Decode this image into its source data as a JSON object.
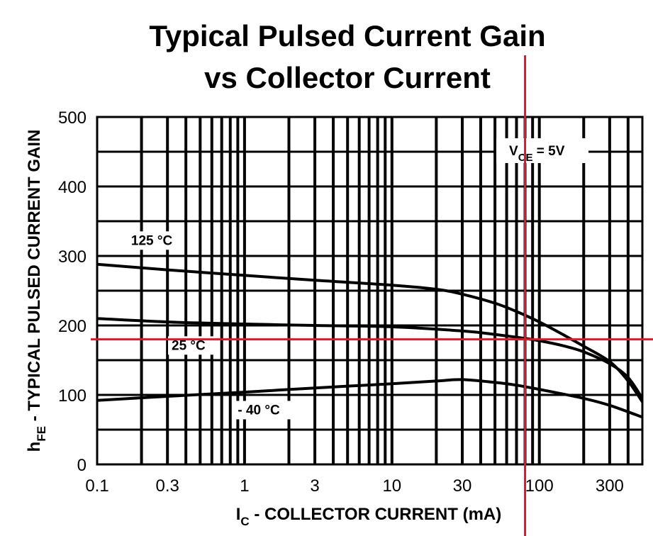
{
  "chart_data": {
    "type": "line",
    "title": [
      "Typical Pulsed Current Gain",
      "vs Collector Current"
    ],
    "xlabel": {
      "main": "I",
      "sub": "C",
      "rest": " - COLLECTOR CURRENT  (mA)"
    },
    "ylabel": {
      "main": "h",
      "sub": "FE",
      "rest": " - TYPICAL PULSED CURRENT GAIN"
    },
    "xscale": "log",
    "xlim": [
      0.1,
      500
    ],
    "ylim": [
      0,
      500
    ],
    "grid": true,
    "x_ticks": [
      {
        "value": 0.1,
        "label": "0.1"
      },
      {
        "value": 0.3,
        "label": "0.3"
      },
      {
        "value": 1,
        "label": "1"
      },
      {
        "value": 3,
        "label": "3"
      },
      {
        "value": 10,
        "label": "10"
      },
      {
        "value": 30,
        "label": "30"
      },
      {
        "value": 100,
        "label": "100"
      },
      {
        "value": 300,
        "label": "300"
      }
    ],
    "y_ticks": [
      {
        "value": 0,
        "label": "0"
      },
      {
        "value": 100,
        "label": "100"
      },
      {
        "value": 200,
        "label": "200"
      },
      {
        "value": 300,
        "label": "300"
      },
      {
        "value": 400,
        "label": "400"
      },
      {
        "value": 500,
        "label": "500"
      }
    ],
    "series": [
      {
        "name": "125 °C",
        "x": [
          0.1,
          0.3,
          1,
          3,
          10,
          20,
          30,
          50,
          70,
          100,
          150,
          200,
          300,
          400,
          500
        ],
        "y": [
          288,
          280,
          272,
          265,
          258,
          252,
          245,
          232,
          220,
          205,
          185,
          170,
          148,
          120,
          90
        ]
      },
      {
        "name": "25 °C",
        "x": [
          0.1,
          0.3,
          1,
          3,
          10,
          30,
          50,
          70,
          100,
          150,
          200,
          300,
          400,
          500
        ],
        "y": [
          210,
          205,
          202,
          200,
          198,
          192,
          187,
          183,
          178,
          170,
          162,
          145,
          125,
          95
        ]
      },
      {
        "name": "- 40 °C",
        "x": [
          0.1,
          0.3,
          1,
          3,
          10,
          20,
          30,
          50,
          70,
          100,
          200,
          300,
          500
        ],
        "y": [
          92,
          98,
          104,
          110,
          116,
          120,
          122,
          118,
          114,
          108,
          95,
          85,
          68
        ]
      }
    ],
    "annotations": [
      {
        "text": "125 °C",
        "x": 0.17,
        "y": 316
      },
      {
        "text": "25 °C",
        "x": 0.32,
        "y": 165
      },
      {
        "text": "- 40 °C",
        "x": 0.9,
        "y": 72
      }
    ],
    "vce_label": {
      "main": "V",
      "sub": "CE",
      "rest": " = 5V"
    },
    "colors": {
      "curve": "#000000",
      "grid": "#000000",
      "crosshair": "#d81b29"
    },
    "crosshair": {
      "x": 80,
      "y": 180
    }
  }
}
